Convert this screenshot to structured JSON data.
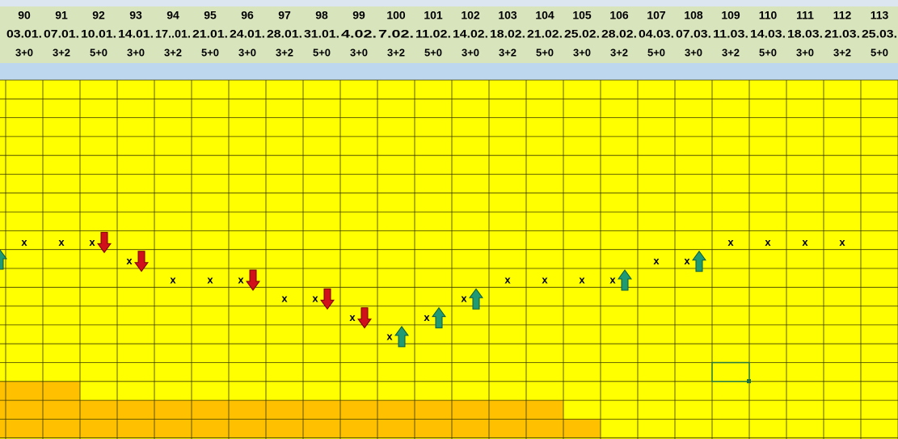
{
  "sheet": {
    "columns": [
      {
        "number": "90",
        "date": "03.01.",
        "format": "3+0",
        "mark": "x",
        "row": 8
      },
      {
        "number": "91",
        "date": "07.01.",
        "format": "3+2",
        "mark": "x",
        "row": 8
      },
      {
        "number": "92",
        "date": "10.01.",
        "format": "5+0",
        "mark": "x",
        "row": 8,
        "arrow": "down"
      },
      {
        "number": "93",
        "date": "14.01.",
        "format": "3+0",
        "mark": "x",
        "row": 9,
        "arrow": "down"
      },
      {
        "number": "94",
        "date": "17..01.",
        "format": "3+2",
        "mark": "x",
        "row": 10
      },
      {
        "number": "95",
        "date": "21.01.",
        "format": "5+0",
        "mark": "x",
        "row": 10
      },
      {
        "number": "96",
        "date": "24.01.",
        "format": "3+0",
        "mark": "x",
        "row": 10,
        "arrow": "down"
      },
      {
        "number": "97",
        "date": "28.01.",
        "format": "3+2",
        "mark": "x",
        "row": 11
      },
      {
        "number": "98",
        "date": "31.01.",
        "format": "5+0",
        "mark": "x",
        "row": 11,
        "arrow": "down"
      },
      {
        "number": "99",
        "date": "4.02.",
        "format": "3+0",
        "mark": "x",
        "row": 12,
        "arrow": "down"
      },
      {
        "number": "100",
        "date": "7.02.",
        "format": "3+2",
        "mark": "x",
        "row": 13,
        "arrow": "up"
      },
      {
        "number": "101",
        "date": "11.02.",
        "format": "5+0",
        "mark": "x",
        "row": 12,
        "arrow": "up"
      },
      {
        "number": "102",
        "date": "14.02.",
        "format": "3+0",
        "mark": "x",
        "row": 11,
        "arrow": "up"
      },
      {
        "number": "103",
        "date": "18.02.",
        "format": "3+2",
        "mark": "x",
        "row": 10
      },
      {
        "number": "104",
        "date": "21.02.",
        "format": "5+0",
        "mark": "x",
        "row": 10
      },
      {
        "number": "105",
        "date": "25.02.",
        "format": "3+0",
        "mark": "x",
        "row": 10
      },
      {
        "number": "106",
        "date": "28.02.",
        "format": "3+2",
        "mark": "x",
        "row": 10,
        "arrow": "up"
      },
      {
        "number": "107",
        "date": "04.03.",
        "format": "5+0",
        "mark": "x",
        "row": 9
      },
      {
        "number": "108",
        "date": "07.03.",
        "format": "3+0",
        "mark": "x",
        "row": 9,
        "arrow": "up"
      },
      {
        "number": "109",
        "date": "11.03.",
        "format": "3+2",
        "mark": "x",
        "row": 8
      },
      {
        "number": "110",
        "date": "14.03.",
        "format": "5+0",
        "mark": "x",
        "row": 8
      },
      {
        "number": "111",
        "date": "18.03.",
        "format": "3+0",
        "mark": "x",
        "row": 8
      },
      {
        "number": "112",
        "date": "21.03.",
        "format": "3+2",
        "mark": "x",
        "row": 8
      },
      {
        "number": "113",
        "date": "25.03.",
        "format": "5+0"
      }
    ]
  }
}
